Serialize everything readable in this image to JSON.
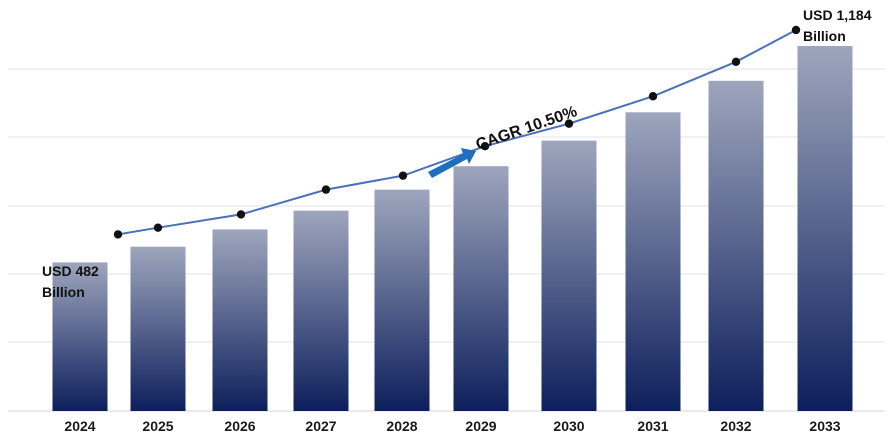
{
  "chart_data": {
    "type": "bar",
    "categories": [
      "2024",
      "2025",
      "2026",
      "2027",
      "2028",
      "2029",
      "2030",
      "2031",
      "2032",
      "2033"
    ],
    "values": [
      482,
      533,
      589,
      650,
      718,
      794,
      877,
      969,
      1071,
      1184
    ],
    "line_overlay": true,
    "ylim": [
      0,
      1300
    ],
    "grid": true,
    "legend": "none",
    "annotations": {
      "start_line1": "USD 482",
      "start_line2": "Billion",
      "end_line1": "USD 1,184",
      "end_line2": "Billion",
      "cagr": "CAGR 10.50%"
    },
    "colors": {
      "bar_top": "#9ea6bd",
      "bar_bottom": "#0d1f5c",
      "line": "#4a72b8",
      "marker": "#111111",
      "arrow": "#1f6fbf",
      "grid": "#e3e3e3"
    }
  }
}
